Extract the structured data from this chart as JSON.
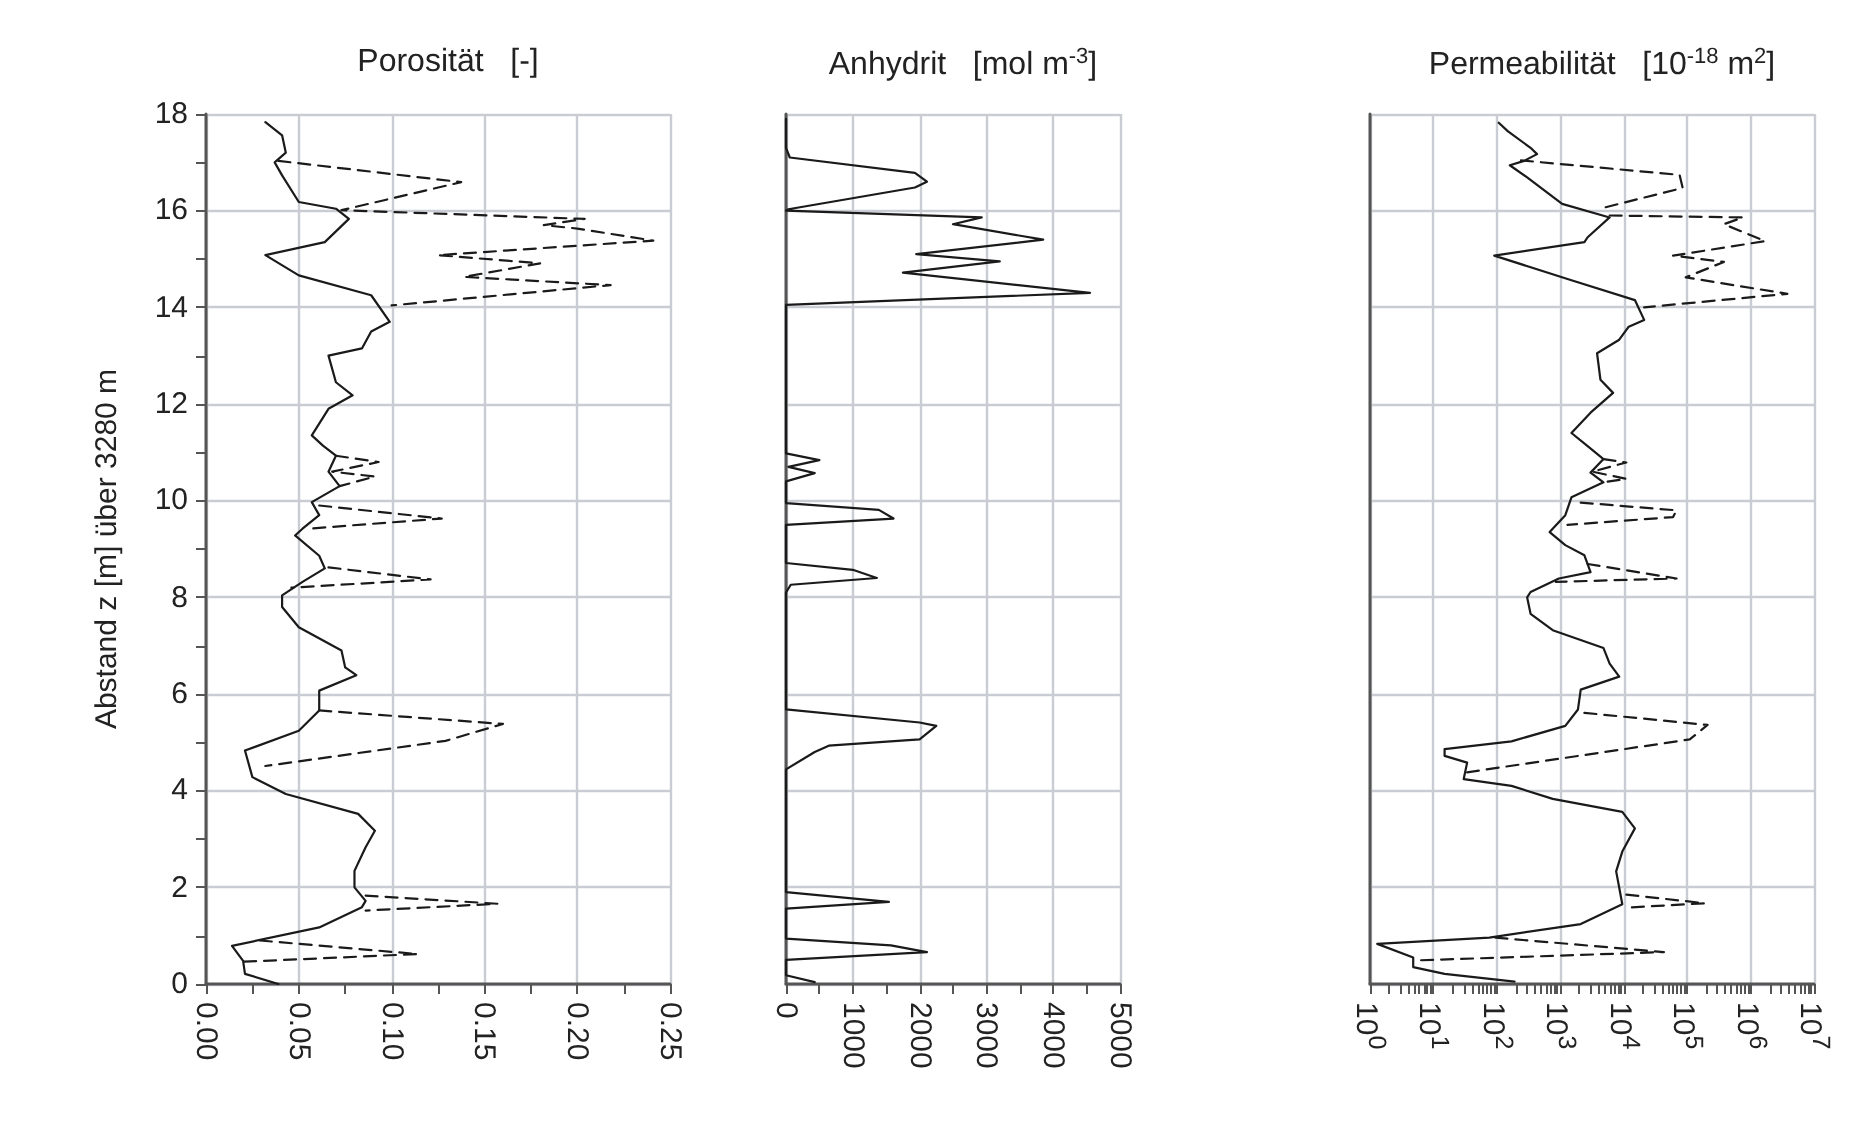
{
  "chart_data": [
    {
      "type": "line",
      "title": "Porosität   [-]",
      "ylabel": "Abstand z [m] über 3280 m",
      "xlim": [
        0,
        0.25
      ],
      "ylim": [
        0,
        18
      ],
      "grid": true,
      "marker": "none",
      "xticks": [
        {
          "value": 0,
          "label": "0.00"
        },
        {
          "value": 0.025,
          "label": null
        },
        {
          "value": 0.05,
          "label": "0.05"
        },
        {
          "value": 0.075,
          "label": null
        },
        {
          "value": 0.1,
          "label": "0.10"
        },
        {
          "value": 0.125,
          "label": null
        },
        {
          "value": 0.15,
          "label": "0.15"
        },
        {
          "value": 0.175,
          "label": null
        },
        {
          "value": 0.2,
          "label": "0.20"
        },
        {
          "value": 0.225,
          "label": null
        },
        {
          "value": 0.25,
          "label": "0.25"
        }
      ],
      "yticks": [
        0,
        {
          "value": 1,
          "label": null
        },
        2,
        {
          "value": 3,
          "label": null
        },
        4,
        {
          "value": 5,
          "label": null
        },
        6,
        {
          "value": 7,
          "label": null
        },
        8,
        {
          "value": 9,
          "label": null
        },
        10,
        {
          "value": 11,
          "label": null
        },
        12,
        {
          "value": 13,
          "label": null
        },
        14,
        {
          "value": 15,
          "label": null
        },
        16,
        {
          "value": 17,
          "label": null
        },
        18
      ],
      "series": [
        {
          "color": "#1a1a1a",
          "line_style": "solid",
          "x": [
            0.032,
            0.041,
            0.043,
            0.037,
            0.041,
            0.05,
            0.07,
            0.077,
            0.064,
            0.032,
            0.05,
            0.089,
            0.099,
            0.089,
            0.084,
            0.066,
            0.07,
            0.079,
            0.066,
            0.057,
            0.063,
            0.07,
            0.066,
            0.072,
            0.057,
            0.061,
            0.052,
            0.048,
            0.061,
            0.064,
            0.052,
            0.041,
            0.041,
            0.05,
            0.073,
            0.075,
            0.081,
            0.061,
            0.061,
            0.05,
            0.021,
            0.025,
            0.043,
            0.082,
            0.091,
            0.086,
            0.08,
            0.08,
            0.086,
            0.084,
            0.061,
            0.014,
            0.02,
            0.021,
            0.039
          ],
          "values": [
            17.83,
            17.56,
            17.2,
            17.0,
            16.73,
            16.18,
            16.04,
            15.83,
            15.35,
            15.08,
            14.66,
            14.25,
            13.7,
            13.5,
            13.15,
            13.0,
            12.45,
            12.18,
            11.9,
            11.35,
            11.14,
            10.93,
            10.6,
            10.3,
            9.97,
            9.7,
            9.42,
            9.28,
            8.86,
            8.6,
            8.32,
            8.04,
            7.8,
            7.38,
            6.9,
            6.55,
            6.39,
            6.07,
            5.66,
            5.24,
            4.83,
            4.28,
            3.93,
            3.52,
            3.17,
            2.83,
            2.34,
            2.0,
            1.72,
            1.59,
            1.17,
            0.79,
            0.48,
            0.21,
            0.0
          ]
        },
        {
          "color": "#1a1a1a",
          "line_style": "dashed",
          "x": [
            0.039,
            0.1375,
            0.073,
            0.204,
            0.182,
            0.2,
            0.241,
            0.125,
            0.18,
            0.139,
            0.218,
            0.1,
            null,
            0.07,
            0.093,
            0.068,
            0.091,
            0.072,
            null,
            0.061,
            0.127,
            0.055,
            null,
            0.066,
            0.121,
            0.046,
            null,
            0.061,
            0.16,
            0.129,
            0.032,
            null,
            0.086,
            0.157,
            0.086,
            null,
            0.029,
            0.114,
            0.02
          ],
          "values": [
            17.03,
            16.59,
            16.01,
            15.83,
            15.7,
            15.63,
            15.38,
            15.08,
            14.91,
            14.63,
            14.46,
            14.04,
            null,
            10.93,
            10.8,
            10.6,
            10.5,
            10.3,
            null,
            9.9,
            9.63,
            9.42,
            null,
            8.62,
            8.37,
            8.2,
            null,
            5.66,
            5.38,
            5.03,
            4.51,
            null,
            1.83,
            1.66,
            1.52,
            null,
            0.9,
            0.62,
            0.46
          ]
        }
      ]
    },
    {
      "type": "line",
      "title": "Anhydrit   [mol m$^{-3}$]",
      "xlim": [
        0,
        5000
      ],
      "ylim": [
        0,
        18
      ],
      "grid": true,
      "marker": "none",
      "tick_labels": "x",
      "xticks": [
        0,
        {
          "value": 500,
          "label": null
        },
        1000,
        {
          "value": 1500,
          "label": null
        },
        2000,
        {
          "value": 2500,
          "label": null
        },
        3000,
        {
          "value": 3500,
          "label": null
        },
        4000,
        {
          "value": 4500,
          "label": null
        },
        5000
      ],
      "yticks": [
        0,
        2,
        4,
        6,
        8,
        10,
        12,
        14,
        16,
        18
      ],
      "series": [
        {
          "color": "#1a1a1a",
          "line_style": "solid",
          "x": [
            0,
            0,
            57,
            1930,
            2110,
            1930,
            36,
            0,
            2930,
            2500,
            3850,
            1950,
            3200,
            1750,
            4550,
            0,
            0,
            500,
            36,
            430,
            0,
            0,
            1390,
            1610,
            0,
            0,
            1000,
            1360,
            71,
            0,
            0,
            2000,
            2250,
            2000,
            640,
            430,
            0,
            0,
            1540,
            0,
            0,
            1570,
            2110,
            0,
            0,
            430
          ],
          "values": [
            17.9,
            17.3,
            17.1,
            16.78,
            16.6,
            16.48,
            16.03,
            16.0,
            15.86,
            15.72,
            15.4,
            15.1,
            14.95,
            14.72,
            14.3,
            14.05,
            10.98,
            10.84,
            10.7,
            10.57,
            10.4,
            9.95,
            9.81,
            9.63,
            9.5,
            8.71,
            8.57,
            8.4,
            8.26,
            8.1,
            5.68,
            5.41,
            5.34,
            5.06,
            4.93,
            4.8,
            4.44,
            1.9,
            1.7,
            1.56,
            0.94,
            0.8,
            0.66,
            0.5,
            0.18,
            0.04
          ]
        }
      ]
    },
    {
      "type": "line",
      "title": "Permeabilität   [10$^{-18}$ m$^{2}$]",
      "log": "x",
      "xlim": [
        1,
        10000000
      ],
      "ylim": [
        0,
        18
      ],
      "grid": true,
      "marker": "none",
      "tick_labels": "x",
      "xticks": [
        {
          "value": 1,
          "label": "10$^{0}$"
        },
        {
          "value": 2,
          "label": null
        },
        {
          "value": 3,
          "label": null
        },
        {
          "value": 4,
          "label": null
        },
        {
          "value": 5,
          "label": null
        },
        {
          "value": 6,
          "label": null
        },
        {
          "value": 7,
          "label": null
        },
        {
          "value": 8,
          "label": null
        },
        {
          "value": 9,
          "label": null
        },
        {
          "value": 10,
          "label": "10$^{1}$"
        },
        {
          "value": 20,
          "label": null
        },
        {
          "value": 30,
          "label": null
        },
        {
          "value": 40,
          "label": null
        },
        {
          "value": 50,
          "label": null
        },
        {
          "value": 60,
          "label": null
        },
        {
          "value": 70,
          "label": null
        },
        {
          "value": 80,
          "label": null
        },
        {
          "value": 90,
          "label": null
        },
        {
          "value": 100,
          "label": "10$^{2}$"
        },
        {
          "value": 200,
          "label": null
        },
        {
          "value": 300,
          "label": null
        },
        {
          "value": 400,
          "label": null
        },
        {
          "value": 500,
          "label": null
        },
        {
          "value": 600,
          "label": null
        },
        {
          "value": 700,
          "label": null
        },
        {
          "value": 800,
          "label": null
        },
        {
          "value": 900,
          "label": null
        },
        {
          "value": 1000,
          "label": "10$^{3}$"
        },
        {
          "value": 2000,
          "label": null
        },
        {
          "value": 3000,
          "label": null
        },
        {
          "value": 4000,
          "label": null
        },
        {
          "value": 5000,
          "label": null
        },
        {
          "value": 6000,
          "label": null
        },
        {
          "value": 7000,
          "label": null
        },
        {
          "value": 8000,
          "label": null
        },
        {
          "value": 9000,
          "label": null
        },
        {
          "value": 10000,
          "label": "10$^{4}$"
        },
        {
          "value": 20000,
          "label": null
        },
        {
          "value": 30000,
          "label": null
        },
        {
          "value": 40000,
          "label": null
        },
        {
          "value": 50000,
          "label": null
        },
        {
          "value": 60000,
          "label": null
        },
        {
          "value": 70000,
          "label": null
        },
        {
          "value": 80000,
          "label": null
        },
        {
          "value": 90000,
          "label": null
        },
        {
          "value": 100000,
          "label": "10$^{5}$"
        },
        {
          "value": 200000,
          "label": null
        },
        {
          "value": 300000,
          "label": null
        },
        {
          "value": 400000,
          "label": null
        },
        {
          "value": 500000,
          "label": null
        },
        {
          "value": 600000,
          "label": null
        },
        {
          "value": 700000,
          "label": null
        },
        {
          "value": 800000,
          "label": null
        },
        {
          "value": 900000,
          "label": null
        },
        {
          "value": 1000000,
          "label": "10$^{6}$"
        },
        {
          "value": 2000000,
          "label": null
        },
        {
          "value": 3000000,
          "label": null
        },
        {
          "value": 4000000,
          "label": null
        },
        {
          "value": 5000000,
          "label": null
        },
        {
          "value": 6000000,
          "label": null
        },
        {
          "value": 7000000,
          "label": null
        },
        {
          "value": 8000000,
          "label": null
        },
        {
          "value": 9000000,
          "label": null
        },
        {
          "value": 10000000,
          "label": "10$^{7}$"
        }
      ],
      "yticks": [
        0,
        2,
        4,
        6,
        8,
        10,
        12,
        14,
        16,
        18
      ],
      "series": [
        {
          "color": "#1a1a1a",
          "line_style": "solid",
          "x": [
            107,
            150,
            340,
            430,
            270,
            160,
            300,
            1070,
            6000,
            2700,
            2400,
            91,
            1500,
            15000,
            21000,
            12000,
            8500,
            3800,
            4300,
            6800,
            3000,
            1500,
            2700,
            4800,
            3000,
            4800,
            1500,
            1200,
            680,
            1200,
            2400,
            3000,
            950,
            340,
            300,
            340,
            760,
            4800,
            6000,
            8500,
            2100,
            1900,
            1200,
            170,
            15,
            15,
            34,
            30,
            170,
            760,
            9500,
            15000,
            9500,
            7600,
            8500,
            9500,
            2100,
            76,
            1.3,
            4.8,
            4.8,
            15,
            190
          ],
          "values": [
            17.82,
            17.64,
            17.3,
            17.17,
            17.03,
            16.94,
            16.69,
            16.14,
            15.86,
            15.45,
            15.35,
            15.07,
            14.56,
            14.15,
            13.74,
            13.6,
            13.33,
            13.05,
            12.5,
            12.23,
            11.82,
            11.4,
            11.13,
            10.86,
            10.58,
            10.38,
            10.07,
            9.7,
            9.35,
            9.08,
            8.87,
            8.52,
            8.39,
            8.11,
            8.0,
            7.66,
            7.32,
            6.95,
            6.63,
            6.36,
            6.09,
            5.68,
            5.34,
            5.02,
            4.86,
            4.72,
            4.58,
            4.24,
            4.1,
            3.83,
            3.56,
            3.22,
            2.74,
            2.33,
            1.99,
            1.65,
            1.24,
            0.96,
            0.83,
            0.55,
            0.35,
            0.21,
            0.05
          ]
        },
        {
          "color": "#1a1a1a",
          "line_style": "dashed",
          "x": [
            240,
            76000,
            85000,
            4800,
            null,
            6000,
            760000,
            380000,
            1700000,
            60000,
            380000,
            95000,
            3800000,
            21000,
            null,
            4800,
            11000,
            3200,
            11000,
            4800,
            null,
            2100,
            68000,
            60000,
            1300,
            null,
            2700,
            68000,
            850,
            null,
            2400,
            210000,
            110000,
            34,
            null,
            11000,
            190000,
            11000,
            null,
            95,
            43000,
            6
          ],
          "values": [
            17.04,
            16.74,
            16.47,
            16.06,
            null,
            15.9,
            15.86,
            15.72,
            15.37,
            15.07,
            14.94,
            14.62,
            14.28,
            14.0,
            null,
            10.86,
            10.79,
            10.6,
            10.45,
            10.38,
            null,
            9.96,
            9.8,
            9.66,
            9.5,
            null,
            8.69,
            8.39,
            8.32,
            null,
            5.61,
            5.36,
            5.06,
            4.38,
            null,
            1.85,
            1.67,
            1.58,
            null,
            0.96,
            0.66,
            0.49
          ]
        }
      ]
    }
  ]
}
